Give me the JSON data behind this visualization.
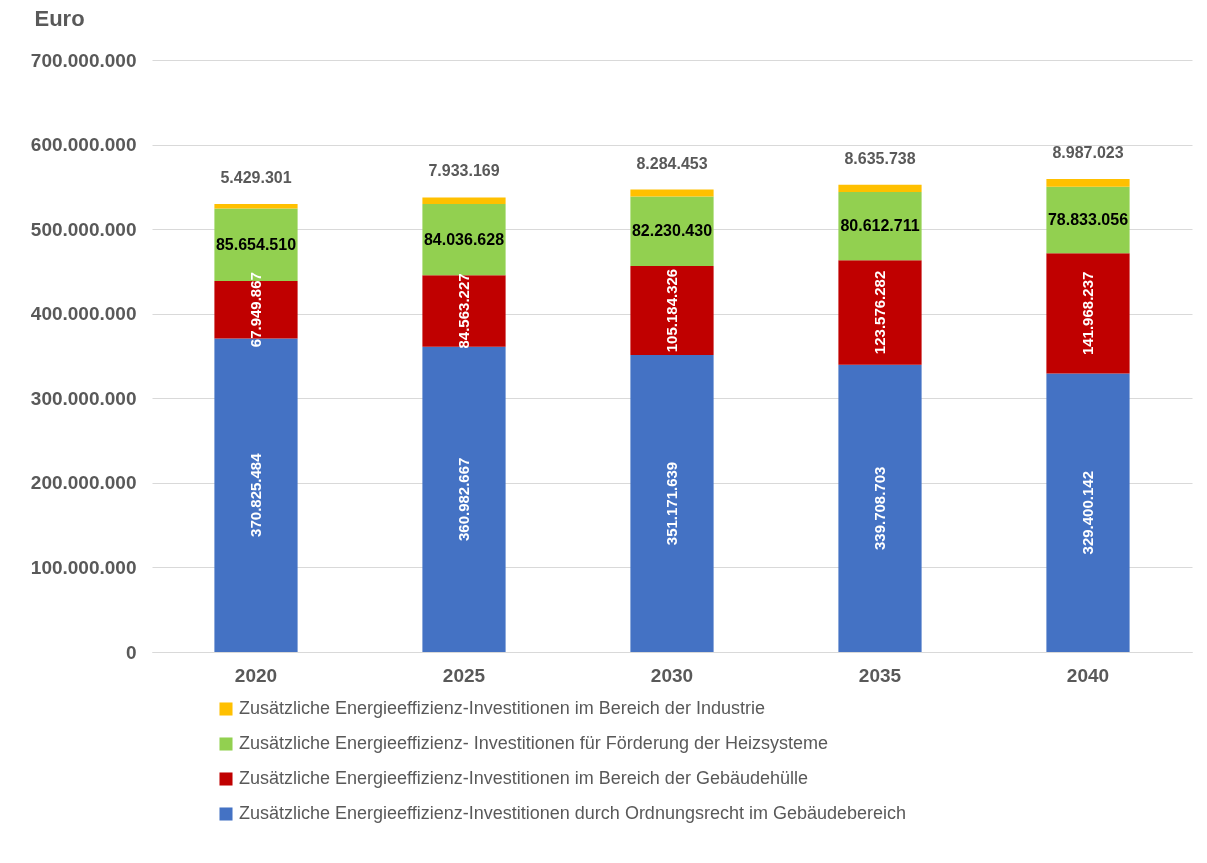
{
  "chart_data": {
    "type": "bar",
    "stacked": true,
    "ylabel": "Euro",
    "categories": [
      "2020",
      "2025",
      "2030",
      "2035",
      "2040"
    ],
    "series": [
      {
        "name": "Zusätzliche Energieeffizienz-Investitionen durch Ordnungsrecht im Gebäudebereich",
        "color": "#4472c4",
        "values": [
          370825484,
          360982667,
          351171639,
          339708703,
          329400142
        ],
        "value_labels": [
          "370.825.484",
          "360.982.667",
          "351.171.639",
          "339.708.703",
          "329.400.142"
        ]
      },
      {
        "name": "Zusätzliche Energieeffizienz-Investitionen im Bereich der Gebäudehülle",
        "color": "#c00000",
        "values": [
          67949867,
          84563227,
          105184326,
          123576282,
          141968237
        ],
        "value_labels": [
          "67.949.867",
          "84.563.227",
          "105.184.326",
          "123.576.282",
          "141.968.237"
        ]
      },
      {
        "name": "Zusätzliche Energieeffizienz- Investitionen für Förderung der Heizsysteme",
        "color": "#92d050",
        "values": [
          85654510,
          84036628,
          82230430,
          80612711,
          78833056
        ],
        "value_labels": [
          "85.654.510",
          "84.036.628",
          "82.230.430",
          "80.612.711",
          "78.833.056"
        ]
      },
      {
        "name": "Zusätzliche Energieeffizienz-Investitionen im Bereich der Industrie",
        "color": "#ffc000",
        "values": [
          5429301,
          7933169,
          8284453,
          8635738,
          8987023
        ],
        "value_labels": [
          "5.429.301",
          "7.933.169",
          "8.284.453",
          "8.635.738",
          "8.987.023"
        ]
      }
    ],
    "ylim": [
      0,
      700000000
    ],
    "yticks": [
      {
        "value": 0,
        "label": "0"
      },
      {
        "value": 100000000,
        "label": "100.000.000"
      },
      {
        "value": 200000000,
        "label": "200.000.000"
      },
      {
        "value": 300000000,
        "label": "300.000.000"
      },
      {
        "value": 400000000,
        "label": "400.000.000"
      },
      {
        "value": 500000000,
        "label": "500.000.000"
      },
      {
        "value": 600000000,
        "label": "600.000.000"
      },
      {
        "value": 700000000,
        "label": "700.000.000"
      }
    ],
    "grid": "y",
    "legend": "bottom"
  }
}
